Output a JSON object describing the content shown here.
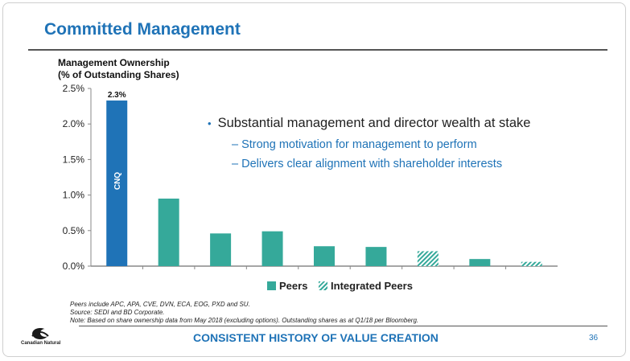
{
  "slide": {
    "title": "Committed Management",
    "page_number": "36",
    "footer": "CONSISTENT HISTORY OF VALUE CREATION",
    "logo_text": "Canadian Natural"
  },
  "bullets": {
    "main": "Substantial management and director wealth at stake",
    "subs": [
      "Strong motivation for management to perform",
      "Delivers clear alignment with shareholder interests"
    ]
  },
  "notes": [
    "Peers include APC, APA, CVE, DVN, ECA, EOG, PXD and SU.",
    "Source: SEDI and BD Corporate.",
    "Note: Based on share ownership data from May 2018 (excluding options). Outstanding shares as at Q1/18 per Bloomberg."
  ],
  "chart_data": {
    "type": "bar",
    "title": "",
    "ylabel_line1": "Management Ownership",
    "ylabel_line2": "(% of Outstanding Shares)",
    "xlabel": "",
    "ylim": [
      0,
      2.5
    ],
    "yticks": [
      "0.0%",
      "0.5%",
      "1.0%",
      "1.5%",
      "2.0%",
      "2.5%"
    ],
    "ytick_values": [
      0,
      0.5,
      1.0,
      1.5,
      2.0,
      2.5
    ],
    "grid": false,
    "legend_position": "bottom",
    "legend": [
      {
        "label": "Peers",
        "style": "solid"
      },
      {
        "label": "Integrated Peers",
        "style": "hatched"
      }
    ],
    "colors": {
      "cnq": "#1f73b7",
      "peers": "#35a99a"
    },
    "bars": [
      {
        "label": "CNQ",
        "value": 2.33,
        "group": "cnq",
        "data_label": "2.3%"
      },
      {
        "value": 0.95,
        "group": "peers"
      },
      {
        "value": 0.46,
        "group": "peers"
      },
      {
        "value": 0.49,
        "group": "peers"
      },
      {
        "value": 0.28,
        "group": "peers"
      },
      {
        "value": 0.27,
        "group": "peers"
      },
      {
        "value": 0.21,
        "group": "integrated"
      },
      {
        "value": 0.1,
        "group": "peers"
      },
      {
        "value": 0.06,
        "group": "integrated"
      }
    ]
  }
}
